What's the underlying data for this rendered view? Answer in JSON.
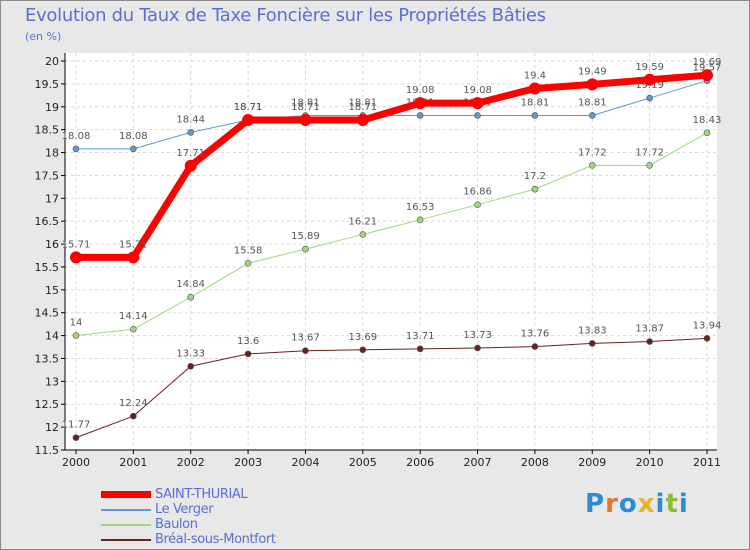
{
  "title": "Evolution du Taux de Taxe Foncière sur les Propriétés Bâties",
  "unit": "(en %)",
  "logo": {
    "letters": [
      "P",
      "r",
      "o",
      "x",
      "i",
      "t",
      "i"
    ],
    "colors": [
      "#2e8bd6",
      "#e8732a",
      "#2e8bd6",
      "#e8b22a",
      "#2e8bd6",
      "#8bbd3a",
      "#2e8bd6"
    ]
  },
  "chart_data": {
    "type": "line",
    "title": "Evolution du Taux de Taxe Foncière sur les Propriétés Bâties",
    "ylabel": "(en %)",
    "xlabel": "",
    "ylim": [
      11.5,
      20
    ],
    "yticks": [
      "11.5",
      "12",
      "12.5",
      "13",
      "13.5",
      "14",
      "14.5",
      "15",
      "15.5",
      "16",
      "16.5",
      "17",
      "17.5",
      "18",
      "18.5",
      "19",
      "19.5",
      "20"
    ],
    "categories": [
      "2000",
      "2001",
      "2002",
      "2003",
      "2004",
      "2005",
      "2006",
      "2007",
      "2008",
      "2009",
      "2010",
      "2011"
    ],
    "series": [
      {
        "name": "Le Verger",
        "color": "#5b9bd5",
        "width": 1,
        "values": [
          18.08,
          18.08,
          18.44,
          18.71,
          18.81,
          18.81,
          18.81,
          18.81,
          18.81,
          18.81,
          19.19,
          19.57
        ]
      },
      {
        "name": "Baulon",
        "color": "#9bd97a",
        "width": 1,
        "values": [
          14,
          14.14,
          14.84,
          15.58,
          15.89,
          16.21,
          16.53,
          16.86,
          17.2,
          17.72,
          17.72,
          18.43
        ]
      },
      {
        "name": "Bréal-sous-Montfort",
        "color": "#6b1f1f",
        "width": 1,
        "values": [
          11.77,
          12.24,
          13.33,
          13.6,
          13.67,
          13.69,
          13.71,
          13.73,
          13.76,
          13.83,
          13.87,
          13.94
        ]
      },
      {
        "name": "SAINT-THURIAL",
        "color": "#ff0000",
        "width": 7,
        "values": [
          15.71,
          15.71,
          17.71,
          18.71,
          18.71,
          18.71,
          19.08,
          19.08,
          19.4,
          19.49,
          19.59,
          19.69
        ]
      }
    ],
    "legend": [
      "SAINT-THURIAL",
      "Le Verger",
      "Baulon",
      "Bréal-sous-Montfort"
    ]
  }
}
